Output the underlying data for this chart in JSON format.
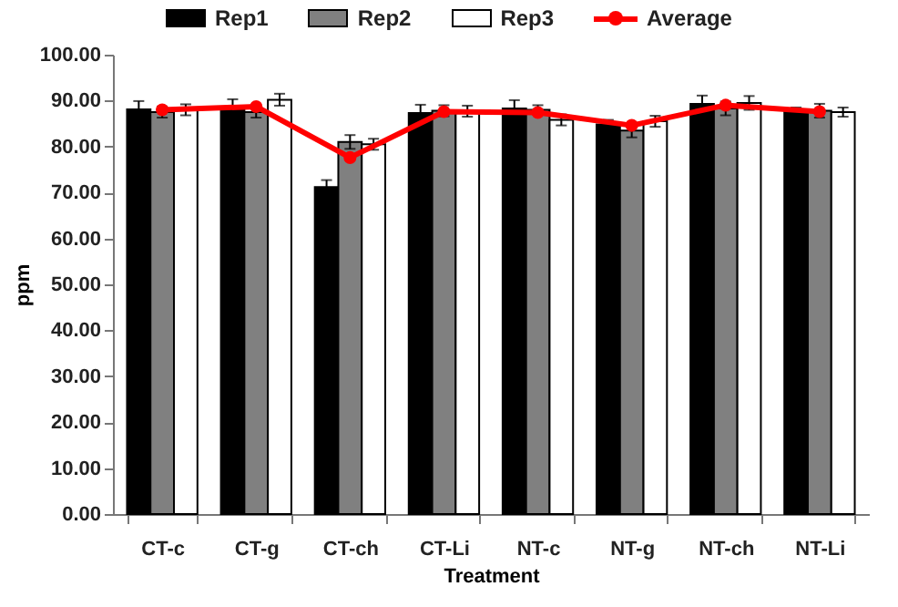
{
  "chart_data": {
    "type": "bar",
    "xlabel": "Treatment",
    "ylabel": "ppm",
    "categories": [
      "CT-c",
      "CT-g",
      "CT-ch",
      "CT-Li",
      "NT-c",
      "NT-g",
      "NT-ch",
      "NT-Li"
    ],
    "series": [
      {
        "name": "Rep1",
        "color": "#000000",
        "values": [
          88.1,
          88.5,
          71.2,
          87.3,
          88.3,
          84.8,
          89.3,
          87.5
        ],
        "errors": [
          1.8,
          1.8,
          1.5,
          1.8,
          1.8,
          1.0,
          1.8,
          1.0
        ]
      },
      {
        "name": "Rep2",
        "color": "#808080",
        "values": [
          87.5,
          87.5,
          81.0,
          87.8,
          88.0,
          83.5,
          88.3,
          87.8
        ],
        "errors": [
          1.2,
          1.2,
          1.5,
          1.2,
          1.0,
          1.5,
          1.5,
          1.5
        ]
      },
      {
        "name": "Rep3",
        "color": "#ffffff",
        "values": [
          88.0,
          90.2,
          80.5,
          87.7,
          85.8,
          85.5,
          89.5,
          87.5
        ],
        "errors": [
          1.2,
          1.3,
          1.2,
          1.2,
          1.2,
          1.2,
          1.5,
          1.0
        ]
      },
      {
        "name": "Average",
        "type": "line",
        "color": "#ff0000",
        "marker": "circle",
        "values": [
          88.0,
          88.7,
          77.6,
          87.6,
          87.4,
          84.6,
          89.0,
          87.6
        ]
      }
    ],
    "ylim": [
      0,
      100
    ],
    "yticks": [
      {
        "value": 0,
        "label": "0.00"
      },
      {
        "value": 10,
        "label": "10.00"
      },
      {
        "value": 20,
        "label": "20.00"
      },
      {
        "value": 30,
        "label": "30.00"
      },
      {
        "value": 40,
        "label": "40.00"
      },
      {
        "value": 50,
        "label": "50.00"
      },
      {
        "value": 60,
        "label": "60.00"
      },
      {
        "value": 70,
        "label": "70.00"
      },
      {
        "value": 80,
        "label": "80.00"
      },
      {
        "value": 90,
        "label": "90.00"
      },
      {
        "value": 100,
        "label": "100.00"
      }
    ],
    "legend": "top",
    "grid": false
  }
}
